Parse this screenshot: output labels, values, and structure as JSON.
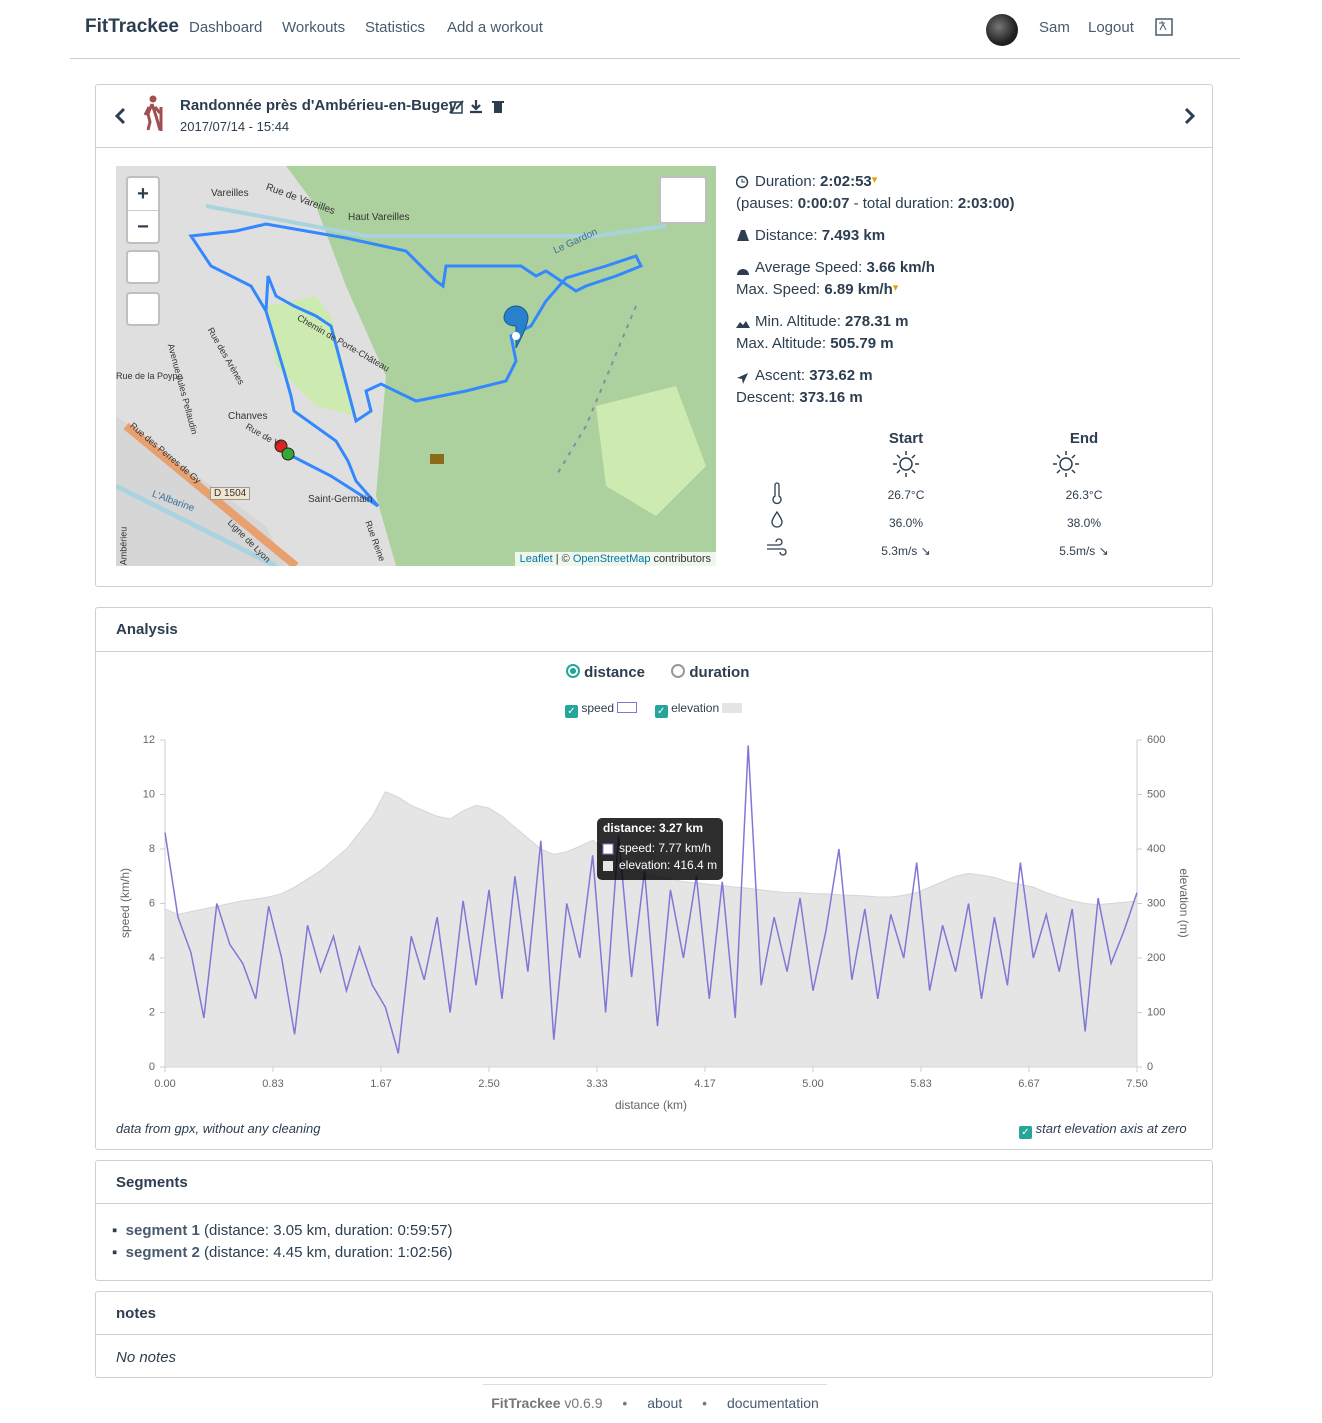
{
  "nav": {
    "brand": "FitTrackee",
    "links": [
      "Dashboard",
      "Workouts",
      "Statistics",
      "Add a workout"
    ],
    "user": "Sam",
    "logout": "Logout"
  },
  "workout": {
    "title": "Randonnée près d'Ambérieu-en-Bugey",
    "date": "2017/07/14 - 15:44"
  },
  "map": {
    "zoom_in": "+",
    "zoom_out": "−",
    "labels": [
      "Vareilles",
      "Rue de Vareilles",
      "Haut Vareilles",
      "Le Gardon",
      "Chemin de Porte-Château",
      "Rue des Arènes",
      "Avenue Jules Pellaudin",
      "Rue de la Poype",
      "Chanves",
      "Rue de V",
      "Rue des Perres de Gy",
      "D 1504",
      "L'Albarine",
      "Ligne de Lyon",
      "Saint-Germain",
      "Rue Reine",
      "Ambérieu"
    ],
    "attribution": [
      "Leaflet",
      " | © ",
      "OpenStreetMap",
      " contributors"
    ]
  },
  "stats": {
    "duration": [
      "Duration: ",
      "2:02:53"
    ],
    "pauses": [
      "(pauses: ",
      "0:00:07",
      " - total duration: ",
      "2:03:00",
      ")"
    ],
    "distance": [
      "Distance: ",
      "7.493 km"
    ],
    "avg_speed": [
      "Average Speed: ",
      "3.66 km/h"
    ],
    "max_speed": [
      "Max. Speed: ",
      "6.89 km/h"
    ],
    "min_alt": [
      "Min. Altitude: ",
      "278.31 m"
    ],
    "max_alt": [
      "Max. Altitude: ",
      "505.79 m"
    ],
    "ascent": [
      "Ascent: ",
      "373.62 m"
    ],
    "descent": [
      "Descent: ",
      "373.16 m"
    ]
  },
  "weather": {
    "headers": [
      "Start",
      "End"
    ],
    "rows": [
      [
        "26.7°C",
        "26.3°C"
      ],
      [
        "36.0%",
        "38.0%"
      ],
      [
        "5.3m/s",
        "5.5m/s"
      ]
    ]
  },
  "analysis": {
    "title": "Analysis",
    "modes": [
      "distance",
      "duration"
    ],
    "note": "data from gpx, without any cleaning",
    "zero_option": "start elevation axis at zero"
  },
  "chart_data": {
    "type": "line",
    "xlabel": "distance (km)",
    "ylabel": "speed (km/h)",
    "y2label": "elevation (m)",
    "x": [
      0,
      0.1,
      0.2,
      0.3,
      0.4,
      0.5,
      0.6,
      0.7,
      0.8,
      0.9,
      1,
      1.1,
      1.2,
      1.3,
      1.4,
      1.5,
      1.6,
      1.7,
      1.8,
      1.9,
      2,
      2.1,
      2.2,
      2.3,
      2.4,
      2.5,
      2.6,
      2.7,
      2.8,
      2.9,
      3,
      3.1,
      3.2,
      3.3,
      3.4,
      3.5,
      3.6,
      3.7,
      3.8,
      3.9,
      4,
      4.1,
      4.2,
      4.3,
      4.4,
      4.5,
      4.6,
      4.7,
      4.8,
      4.9,
      5,
      5.1,
      5.2,
      5.3,
      5.4,
      5.5,
      5.6,
      5.7,
      5.8,
      5.9,
      6,
      6.1,
      6.2,
      6.3,
      6.4,
      6.5,
      6.6,
      6.7,
      6.8,
      6.9,
      7,
      7.1,
      7.2,
      7.3,
      7.4,
      7.5
    ],
    "series": [
      {
        "name": "speed",
        "color": "#8078d6",
        "values": [
          8.6,
          5.5,
          4.2,
          1.8,
          6.0,
          4.5,
          3.8,
          2.5,
          5.9,
          4.0,
          1.2,
          5.2,
          3.5,
          4.8,
          2.8,
          4.4,
          3.0,
          2.2,
          0.5,
          4.8,
          3.2,
          5.5,
          2.0,
          6.1,
          3.0,
          6.5,
          2.5,
          7.0,
          3.5,
          8.3,
          1.0,
          6.0,
          4.0,
          7.77,
          2.0,
          8.5,
          3.3,
          7.2,
          1.5,
          6.5,
          4.0,
          7.0,
          2.5,
          6.8,
          1.8,
          11.8,
          3.0,
          5.5,
          3.5,
          6.2,
          2.8,
          5.0,
          8.0,
          3.2,
          5.8,
          2.5,
          5.6,
          4.0,
          7.5,
          2.8,
          5.2,
          3.5,
          6.0,
          2.5,
          5.5,
          3.0,
          7.5,
          4.0,
          5.6,
          3.5,
          5.8,
          1.3,
          6.2,
          3.8,
          5.0,
          6.4
        ]
      },
      {
        "name": "elevation",
        "color": "#e5e5e5",
        "axis": "y2",
        "values": [
          290,
          280,
          285,
          290,
          295,
          300,
          305,
          308,
          312,
          318,
          330,
          345,
          360,
          380,
          400,
          430,
          460,
          505,
          495,
          480,
          470,
          460,
          455,
          470,
          480,
          475,
          460,
          440,
          420,
          400,
          390,
          395,
          405,
          416,
          400,
          380,
          365,
          355,
          350,
          345,
          340,
          338,
          335,
          333,
          330,
          328,
          325,
          322,
          320,
          320,
          318,
          318,
          316,
          315,
          314,
          312,
          312,
          315,
          320,
          330,
          340,
          350,
          355,
          352,
          348,
          340,
          335,
          330,
          320,
          312,
          305,
          300,
          298,
          300,
          302,
          305
        ]
      }
    ],
    "xlim": [
      0,
      7.5
    ],
    "xticks": [
      {
        "value": 0,
        "label": "0.00"
      },
      {
        "value": 0.8333,
        "label": "0.83"
      },
      {
        "value": 1.6667,
        "label": "1.67"
      },
      {
        "value": 2.5,
        "label": "2.50"
      },
      {
        "value": 3.3333,
        "label": "3.33"
      },
      {
        "value": 4.1667,
        "label": "4.17"
      },
      {
        "value": 5,
        "label": "5.00"
      },
      {
        "value": 5.8333,
        "label": "5.83"
      },
      {
        "value": 6.6667,
        "label": "6.67"
      },
      {
        "value": 7.5,
        "label": "7.50"
      }
    ],
    "ylim": [
      0,
      12
    ],
    "yticks": [
      0,
      2,
      4,
      6,
      8,
      10,
      12
    ],
    "y2lim": [
      0,
      600
    ],
    "y2ticks": [
      0,
      100,
      200,
      300,
      400,
      500,
      600
    ],
    "grid": false,
    "tooltip": {
      "title": "distance: 3.27 km",
      "lines": [
        "speed: 7.77 km/h",
        "elevation: 416.4 m"
      ]
    }
  },
  "segments": {
    "title": "Segments",
    "items": [
      {
        "name": "segment 1",
        "details": "(distance: 3.05 km, duration: 0:59:57)"
      },
      {
        "name": "segment 2",
        "details": "(distance: 4.45 km, duration: 1:02:56)"
      }
    ]
  },
  "notes": {
    "title": "notes",
    "text": "No notes"
  },
  "footer": {
    "brand": "FitTrackee",
    "version": "v0.6.9",
    "sep": "•",
    "links": [
      "about",
      "documentation"
    ]
  }
}
